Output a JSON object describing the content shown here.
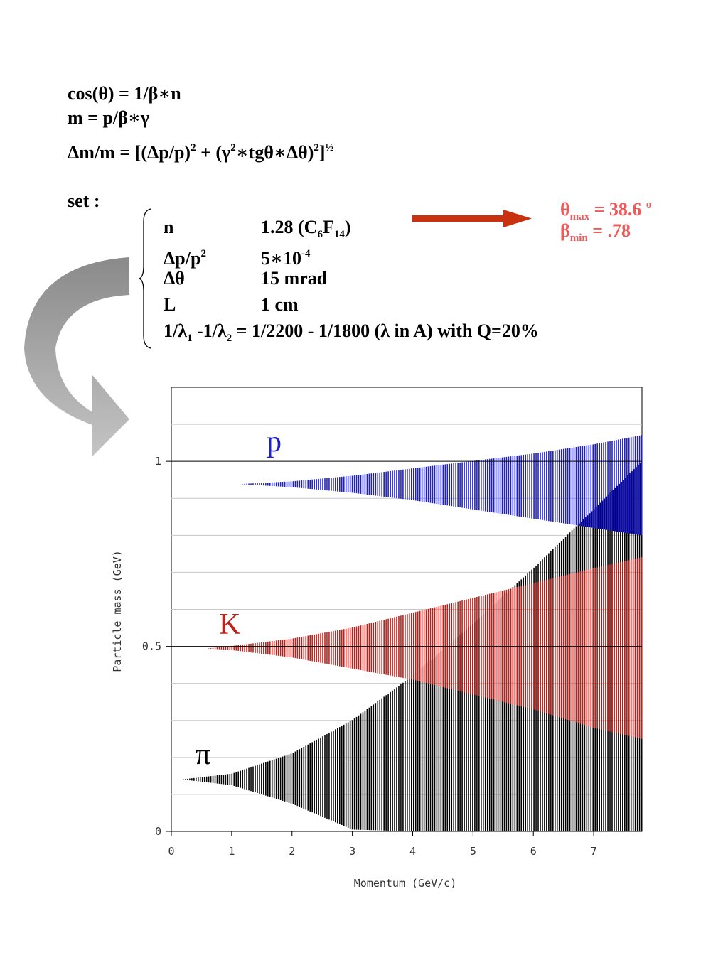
{
  "equations": {
    "eq1": {
      "a": "cos(θ) = 1/β∗n"
    },
    "eq2": {
      "a": "m = p/β∗γ"
    },
    "eq3": {
      "a": "Δm/m = [(Δp/p)",
      "a_sup": "2",
      "b": " + (γ",
      "b_sup": "2",
      "c": "∗tgθ∗Δθ)",
      "c_sup": "2",
      "d": "]",
      "d_sup": "½"
    }
  },
  "set_label": "set :",
  "parameters": [
    {
      "name": "n",
      "value": "1.28  (C",
      "value_sub1": "6",
      "value_mid": "F",
      "value_sub2": "14",
      "value_end": ")"
    },
    {
      "name": "Δp/p",
      "name_sup": "2",
      "value": "5∗10",
      "value_sup": "-4"
    },
    {
      "name": "Δθ",
      "value": "15 mrad"
    },
    {
      "name": "L",
      "value": "1 cm"
    }
  ],
  "wavelength_line": {
    "a": "1/λ",
    "a_sub": "1",
    "b": " -1/λ",
    "b_sub": "2",
    "c": " = 1/2200 - 1/1800 (λ in A) with Q=20%"
  },
  "results": {
    "theta": {
      "sym": "θ",
      "sub": "max",
      "text": " = 38.6 ",
      "sup": "o"
    },
    "beta": {
      "sym": "β",
      "sub": "min",
      "text": " = .78"
    }
  },
  "colors": {
    "pion": "#000000",
    "kaon": "#c0201a",
    "proton": "#2020c8",
    "overlap_pk": "#000080",
    "result": "#f05a5a",
    "arrow": "#c83210"
  },
  "chart_data": {
    "type": "area",
    "xlabel": "Momentum (GeV/c)",
    "ylabel": "Particle mass (GeV)",
    "xlim": [
      0,
      7.8
    ],
    "ylim": [
      0,
      1.2
    ],
    "x_ticks": [
      "0",
      "1",
      "2",
      "3",
      "4",
      "5",
      "6",
      "7"
    ],
    "y_ticks": [
      "0",
      "0.5",
      "1"
    ],
    "grid": "horizontal",
    "series": [
      {
        "name": "π",
        "mass": 0.14,
        "p_min": 0.2,
        "p_max": 7.8,
        "band": {
          "p": [
            0.2,
            1,
            2,
            3,
            4,
            5,
            6,
            7,
            7.8
          ],
          "low": [
            0.14,
            0.125,
            0.075,
            0.005,
            0,
            0,
            0,
            0,
            0
          ],
          "high": [
            0.14,
            0.155,
            0.21,
            0.3,
            0.42,
            0.56,
            0.71,
            0.87,
            1.0
          ]
        }
      },
      {
        "name": "K",
        "mass": 0.494,
        "p_min": 0.62,
        "p_max": 7.8,
        "band": {
          "p": [
            0.62,
            1,
            2,
            3,
            4,
            5,
            6,
            7,
            7.8
          ],
          "low": [
            0.494,
            0.49,
            0.47,
            0.44,
            0.41,
            0.37,
            0.33,
            0.28,
            0.25
          ],
          "high": [
            0.494,
            0.5,
            0.52,
            0.55,
            0.59,
            0.63,
            0.67,
            0.71,
            0.74
          ]
        }
      },
      {
        "name": "p",
        "mass": 0.938,
        "p_min": 1.18,
        "p_max": 7.8,
        "band": {
          "p": [
            1.18,
            2,
            3,
            4,
            5,
            6,
            7,
            7.8
          ],
          "low": [
            0.938,
            0.93,
            0.915,
            0.895,
            0.87,
            0.845,
            0.82,
            0.8
          ],
          "high": [
            0.938,
            0.945,
            0.96,
            0.98,
            1.0,
            1.02,
            1.045,
            1.07
          ]
        }
      }
    ]
  }
}
